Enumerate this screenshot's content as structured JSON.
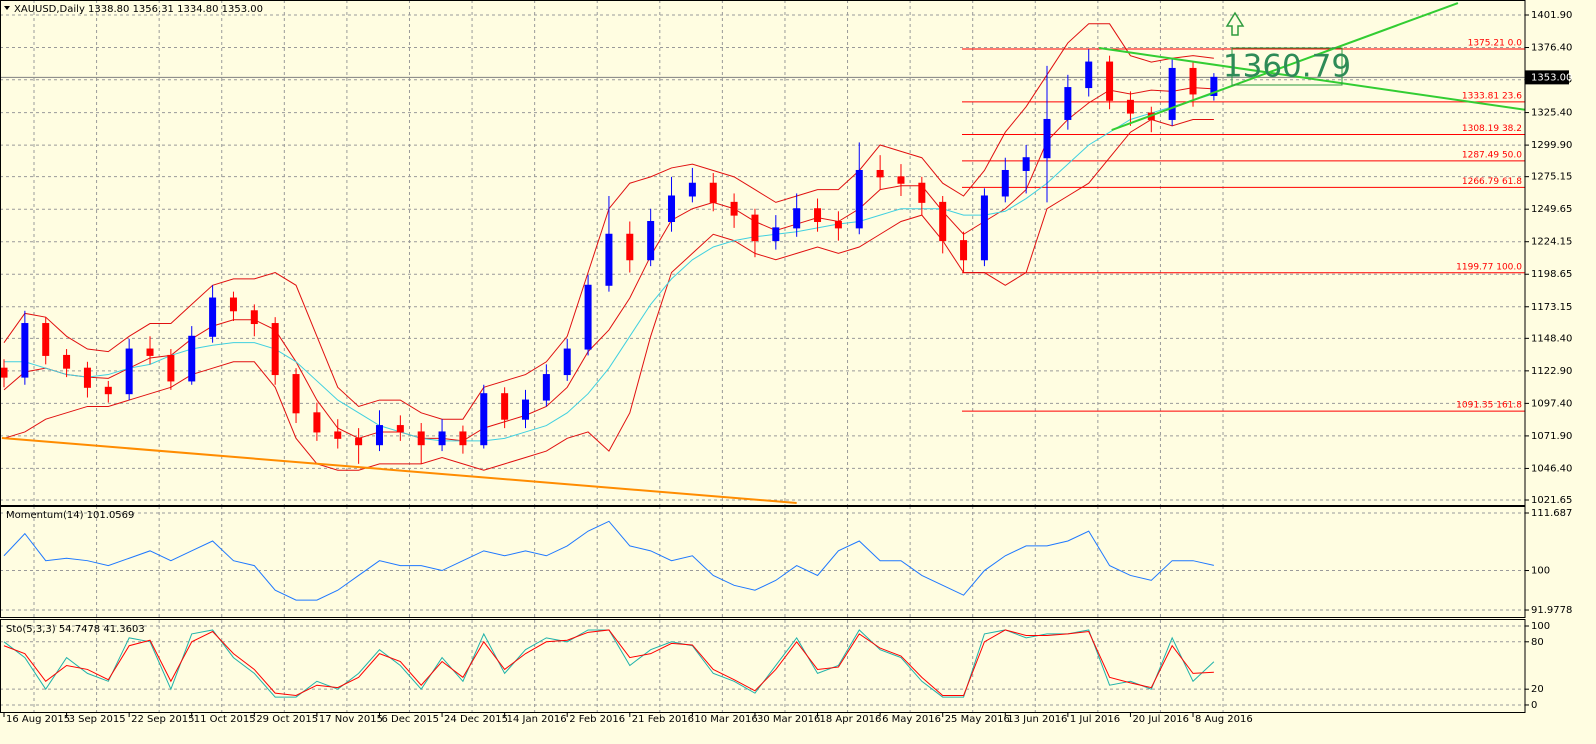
{
  "chart_data": [
    {
      "type": "candlestick",
      "title": "XAUUSD,Daily 1338.80 1356.31 1334.80 1353.00",
      "categories": [
        "16 Aug 2015",
        null,
        null,
        "3 Sep 2015",
        null,
        null,
        "22 Sep 2015",
        null,
        null,
        "11 Oct 2015",
        null,
        null,
        "29 Oct 2015",
        null,
        null,
        "17 Nov 2015",
        null,
        null,
        "6 Dec 2015",
        null,
        null,
        "24 Dec 2015",
        null,
        null,
        "14 Jan 2016",
        null,
        null,
        "2 Feb 2016",
        null,
        null,
        "21 Feb 2016",
        null,
        null,
        "10 Mar 2016",
        null,
        null,
        "30 Mar 2016",
        null,
        null,
        "18 Apr 2016",
        null,
        null,
        "6 May 2016",
        null,
        null,
        "25 May 2016",
        null,
        null,
        "13 Jun 2016",
        null,
        null,
        "1 Jul 2016",
        null,
        null,
        "20 Jul 2016",
        null,
        null,
        "8 Aug 2016",
        null
      ],
      "open": [
        1125,
        1118,
        1160,
        1135,
        1125,
        1110,
        1105,
        1140,
        1135,
        1115,
        1150,
        1180,
        1170,
        1160,
        1120,
        1090,
        1075,
        1070,
        1065,
        1080,
        1075,
        1065,
        1075,
        1065,
        1105,
        1085,
        1100,
        1120,
        1140,
        1190,
        1230,
        1210,
        1240,
        1260,
        1270,
        1255,
        1245,
        1225,
        1235,
        1250,
        1240,
        1235,
        1280,
        1275,
        1270,
        1255,
        1225,
        1210,
        1260,
        1280,
        1290,
        1320,
        1345,
        1365,
        1335,
        1325,
        1320,
        1360,
        1338.8
      ],
      "high": [
        1132,
        1170,
        1165,
        1140,
        1130,
        1115,
        1148,
        1150,
        1140,
        1158,
        1190,
        1185,
        1175,
        1165,
        1125,
        1098,
        1085,
        1078,
        1092,
        1088,
        1082,
        1085,
        1080,
        1112,
        1110,
        1108,
        1128,
        1148,
        1198,
        1260,
        1240,
        1250,
        1275,
        1282,
        1278,
        1262,
        1250,
        1245,
        1262,
        1258,
        1248,
        1302,
        1292,
        1285,
        1275,
        1260,
        1232,
        1266,
        1290,
        1300,
        1362,
        1355,
        1375,
        1370,
        1342,
        1330,
        1368,
        1365,
        1356.31
      ],
      "low": [
        1110,
        1112,
        1128,
        1118,
        1102,
        1098,
        1100,
        1128,
        1108,
        1112,
        1145,
        1162,
        1150,
        1112,
        1082,
        1068,
        1062,
        1050,
        1060,
        1068,
        1050,
        1060,
        1058,
        1062,
        1078,
        1078,
        1095,
        1115,
        1135,
        1185,
        1200,
        1205,
        1232,
        1255,
        1248,
        1235,
        1212,
        1218,
        1228,
        1232,
        1225,
        1230,
        1265,
        1260,
        1245,
        1215,
        1200,
        1205,
        1255,
        1262,
        1255,
        1312,
        1338,
        1328,
        1315,
        1310,
        1315,
        1330,
        1334.8
      ],
      "close": [
        1118,
        1160,
        1135,
        1125,
        1110,
        1105,
        1140,
        1135,
        1115,
        1150,
        1180,
        1170,
        1160,
        1120,
        1090,
        1075,
        1070,
        1065,
        1080,
        1075,
        1065,
        1075,
        1065,
        1105,
        1085,
        1100,
        1120,
        1140,
        1190,
        1230,
        1210,
        1240,
        1260,
        1270,
        1255,
        1245,
        1225,
        1235,
        1250,
        1240,
        1235,
        1280,
        1275,
        1270,
        1255,
        1225,
        1210,
        1260,
        1280,
        1290,
        1320,
        1345,
        1365,
        1335,
        1325,
        1320,
        1360,
        1340,
        1353
      ],
      "bull_color": "#0000ff",
      "bear_color": "#ff0000",
      "series": [
        {
          "color": "#e01010",
          "values": [
            1145,
            1168,
            1165,
            1150,
            1140,
            1138,
            1150,
            1160,
            1160,
            1175,
            1190,
            1195,
            1195,
            1200,
            1190,
            1150,
            1110,
            1095,
            1100,
            1100,
            1090,
            1085,
            1085,
            1110,
            1115,
            1120,
            1130,
            1150,
            1200,
            1250,
            1270,
            1275,
            1282,
            1285,
            1280,
            1275,
            1265,
            1255,
            1260,
            1265,
            1265,
            1280,
            1300,
            1295,
            1290,
            1270,
            1260,
            1280,
            1310,
            1330,
            1355,
            1380,
            1395,
            1395,
            1370,
            1365,
            1368,
            1370,
            1368
          ]
        },
        {
          "color": "#e01010",
          "values": [
            1108,
            1122,
            1125,
            1120,
            1118,
            1117,
            1125,
            1133,
            1135,
            1148,
            1158,
            1163,
            1163,
            1155,
            1130,
            1100,
            1078,
            1070,
            1075,
            1075,
            1070,
            1070,
            1068,
            1078,
            1083,
            1088,
            1095,
            1110,
            1138,
            1155,
            1180,
            1213,
            1241,
            1250,
            1255,
            1250,
            1240,
            1233,
            1238,
            1243,
            1240,
            1250,
            1265,
            1268,
            1268,
            1248,
            1230,
            1240,
            1250,
            1265,
            1303,
            1320,
            1333,
            1343,
            1340,
            1343,
            1342,
            1345,
            1344
          ]
        },
        {
          "color": "#e01010",
          "values": [
            1070,
            1075,
            1085,
            1090,
            1095,
            1095,
            1100,
            1105,
            1110,
            1120,
            1125,
            1130,
            1130,
            1110,
            1070,
            1050,
            1045,
            1045,
            1050,
            1050,
            1050,
            1055,
            1050,
            1045,
            1050,
            1055,
            1060,
            1070,
            1075,
            1060,
            1090,
            1150,
            1200,
            1215,
            1230,
            1225,
            1215,
            1210,
            1215,
            1220,
            1215,
            1220,
            1230,
            1240,
            1245,
            1225,
            1200,
            1200,
            1190,
            1200,
            1250,
            1260,
            1270,
            1290,
            1310,
            1320,
            1315,
            1320,
            1320
          ]
        },
        {
          "color": "#40d0e0",
          "values": [
            1130,
            1130,
            1125,
            1120,
            1118,
            1120,
            1125,
            1128,
            1135,
            1140,
            1143,
            1145,
            1145,
            1140,
            1130,
            1115,
            1100,
            1090,
            1080,
            1075,
            1070,
            1068,
            1068,
            1068,
            1070,
            1075,
            1080,
            1090,
            1105,
            1125,
            1150,
            1175,
            1195,
            1210,
            1220,
            1225,
            1228,
            1230,
            1232,
            1235,
            1238,
            1240,
            1245,
            1250,
            1250,
            1250,
            1245,
            1245,
            1248,
            1258,
            1270,
            1285,
            1300,
            1310,
            1320,
            1325,
            1330,
            1335,
            1340
          ]
        }
      ],
      "ylim": [
        1017.73,
        1413.66
      ],
      "yticks": [
        {
          "value": 1401.9,
          "label": "1401.90"
        },
        {
          "value": 1376.4,
          "label": "1376.40"
        },
        1351.15,
        {
          "value": 1325.4,
          "label": "1325.40"
        },
        {
          "value": 1299.9,
          "label": "1299.90"
        },
        1275.15,
        1249.65,
        1224.15,
        1198.65,
        1173.15,
        {
          "value": 1148.4,
          "label": "1148.40"
        },
        {
          "value": 1122.9,
          "label": "1122.90"
        },
        {
          "value": 1097.4,
          "label": "1097.40"
        },
        {
          "value": 1071.9,
          "label": "1071.90"
        },
        {
          "value": 1046.4,
          "label": "1046.40"
        },
        1021.65
      ],
      "grid": true,
      "current_price": {
        "value": 1353,
        "label": "1353.00"
      },
      "fibonacci": {
        "color": "#ff0000",
        "levels": [
          {
            "value": 1375.21,
            "label": "1375.21 0.0"
          },
          {
            "value": 1333.81,
            "label": "1333.81 23.6"
          },
          {
            "value": 1308.19,
            "label": "1308.19 38.2"
          },
          {
            "value": 1287.49,
            "label": "1287.49 50.0"
          },
          {
            "value": 1266.79,
            "label": "1266.79 61.8"
          },
          {
            "value": 1199.77,
            "label": "1199.77 100.0"
          },
          {
            "value": 1091.35,
            "label": "1091.35 161.8"
          }
        ]
      },
      "trendlines": [
        {
          "color": "#32cd32",
          "x": [
            52.5,
            73
          ],
          "y": [
            1376,
            1327.4
          ]
        },
        {
          "color": "#32cd32",
          "x": [
            53.1,
            69.7
          ],
          "y": [
            1311.7,
            1411.3
          ]
        },
        {
          "color": "#ff8c00",
          "x": [
            -0.1,
            38
          ],
          "y": [
            1070.3,
            1019.3
          ]
        }
      ],
      "annotation": "1360.79"
    },
    {
      "type": "line",
      "title": "Momentum(14) 101.0569",
      "series": [
        {
          "color": "#1e78ff",
          "values": [
            103,
            107.5,
            102,
            102.5,
            102,
            101,
            102.5,
            104,
            102,
            104,
            106,
            102,
            101,
            96,
            94,
            94,
            96,
            99,
            102,
            101,
            101,
            100,
            102,
            104,
            103,
            104,
            103,
            105,
            108,
            110,
            105,
            104,
            102,
            103,
            99,
            97,
            96,
            98,
            101,
            99,
            104,
            106,
            102,
            102,
            99,
            97,
            95,
            100,
            103,
            105,
            105,
            106,
            108,
            101,
            99,
            98,
            102,
            102,
            101.0569
          ]
        }
      ],
      "ylim": [
        90.56,
        113.11
      ],
      "yticks": [
        111.687,
        100,
        91.9778
      ],
      "grid": true
    },
    {
      "type": "line",
      "title": "Sto(5,3,3) 54.7478 41.3603",
      "series": [
        {
          "color": "#20b2aa",
          "values": [
            80,
            60,
            20,
            60,
            40,
            30,
            85,
            80,
            20,
            90,
            95,
            60,
            40,
            10,
            10,
            30,
            20,
            40,
            70,
            50,
            20,
            60,
            30,
            90,
            40,
            70,
            85,
            80,
            95,
            95,
            50,
            70,
            80,
            75,
            40,
            30,
            15,
            50,
            85,
            40,
            50,
            95,
            70,
            60,
            30,
            10,
            10,
            90,
            95,
            85,
            90,
            90,
            95,
            25,
            30,
            20,
            85,
            30,
            54.7478
          ]
        },
        {
          "color": "#ff0000",
          "values": [
            75,
            65,
            30,
            50,
            45,
            32,
            75,
            82,
            30,
            80,
            93,
            65,
            45,
            15,
            12,
            25,
            22,
            35,
            65,
            55,
            25,
            55,
            35,
            80,
            45,
            65,
            80,
            82,
            92,
            95,
            60,
            65,
            78,
            76,
            45,
            32,
            18,
            45,
            80,
            45,
            48,
            90,
            72,
            62,
            35,
            12,
            12,
            80,
            95,
            88,
            88,
            90,
            93,
            35,
            28,
            22,
            75,
            40,
            41.3603
          ]
        }
      ],
      "ylim": [
        -8.9,
        107.6
      ],
      "yticks": [
        100,
        80,
        20,
        0
      ],
      "grid": true
    }
  ]
}
